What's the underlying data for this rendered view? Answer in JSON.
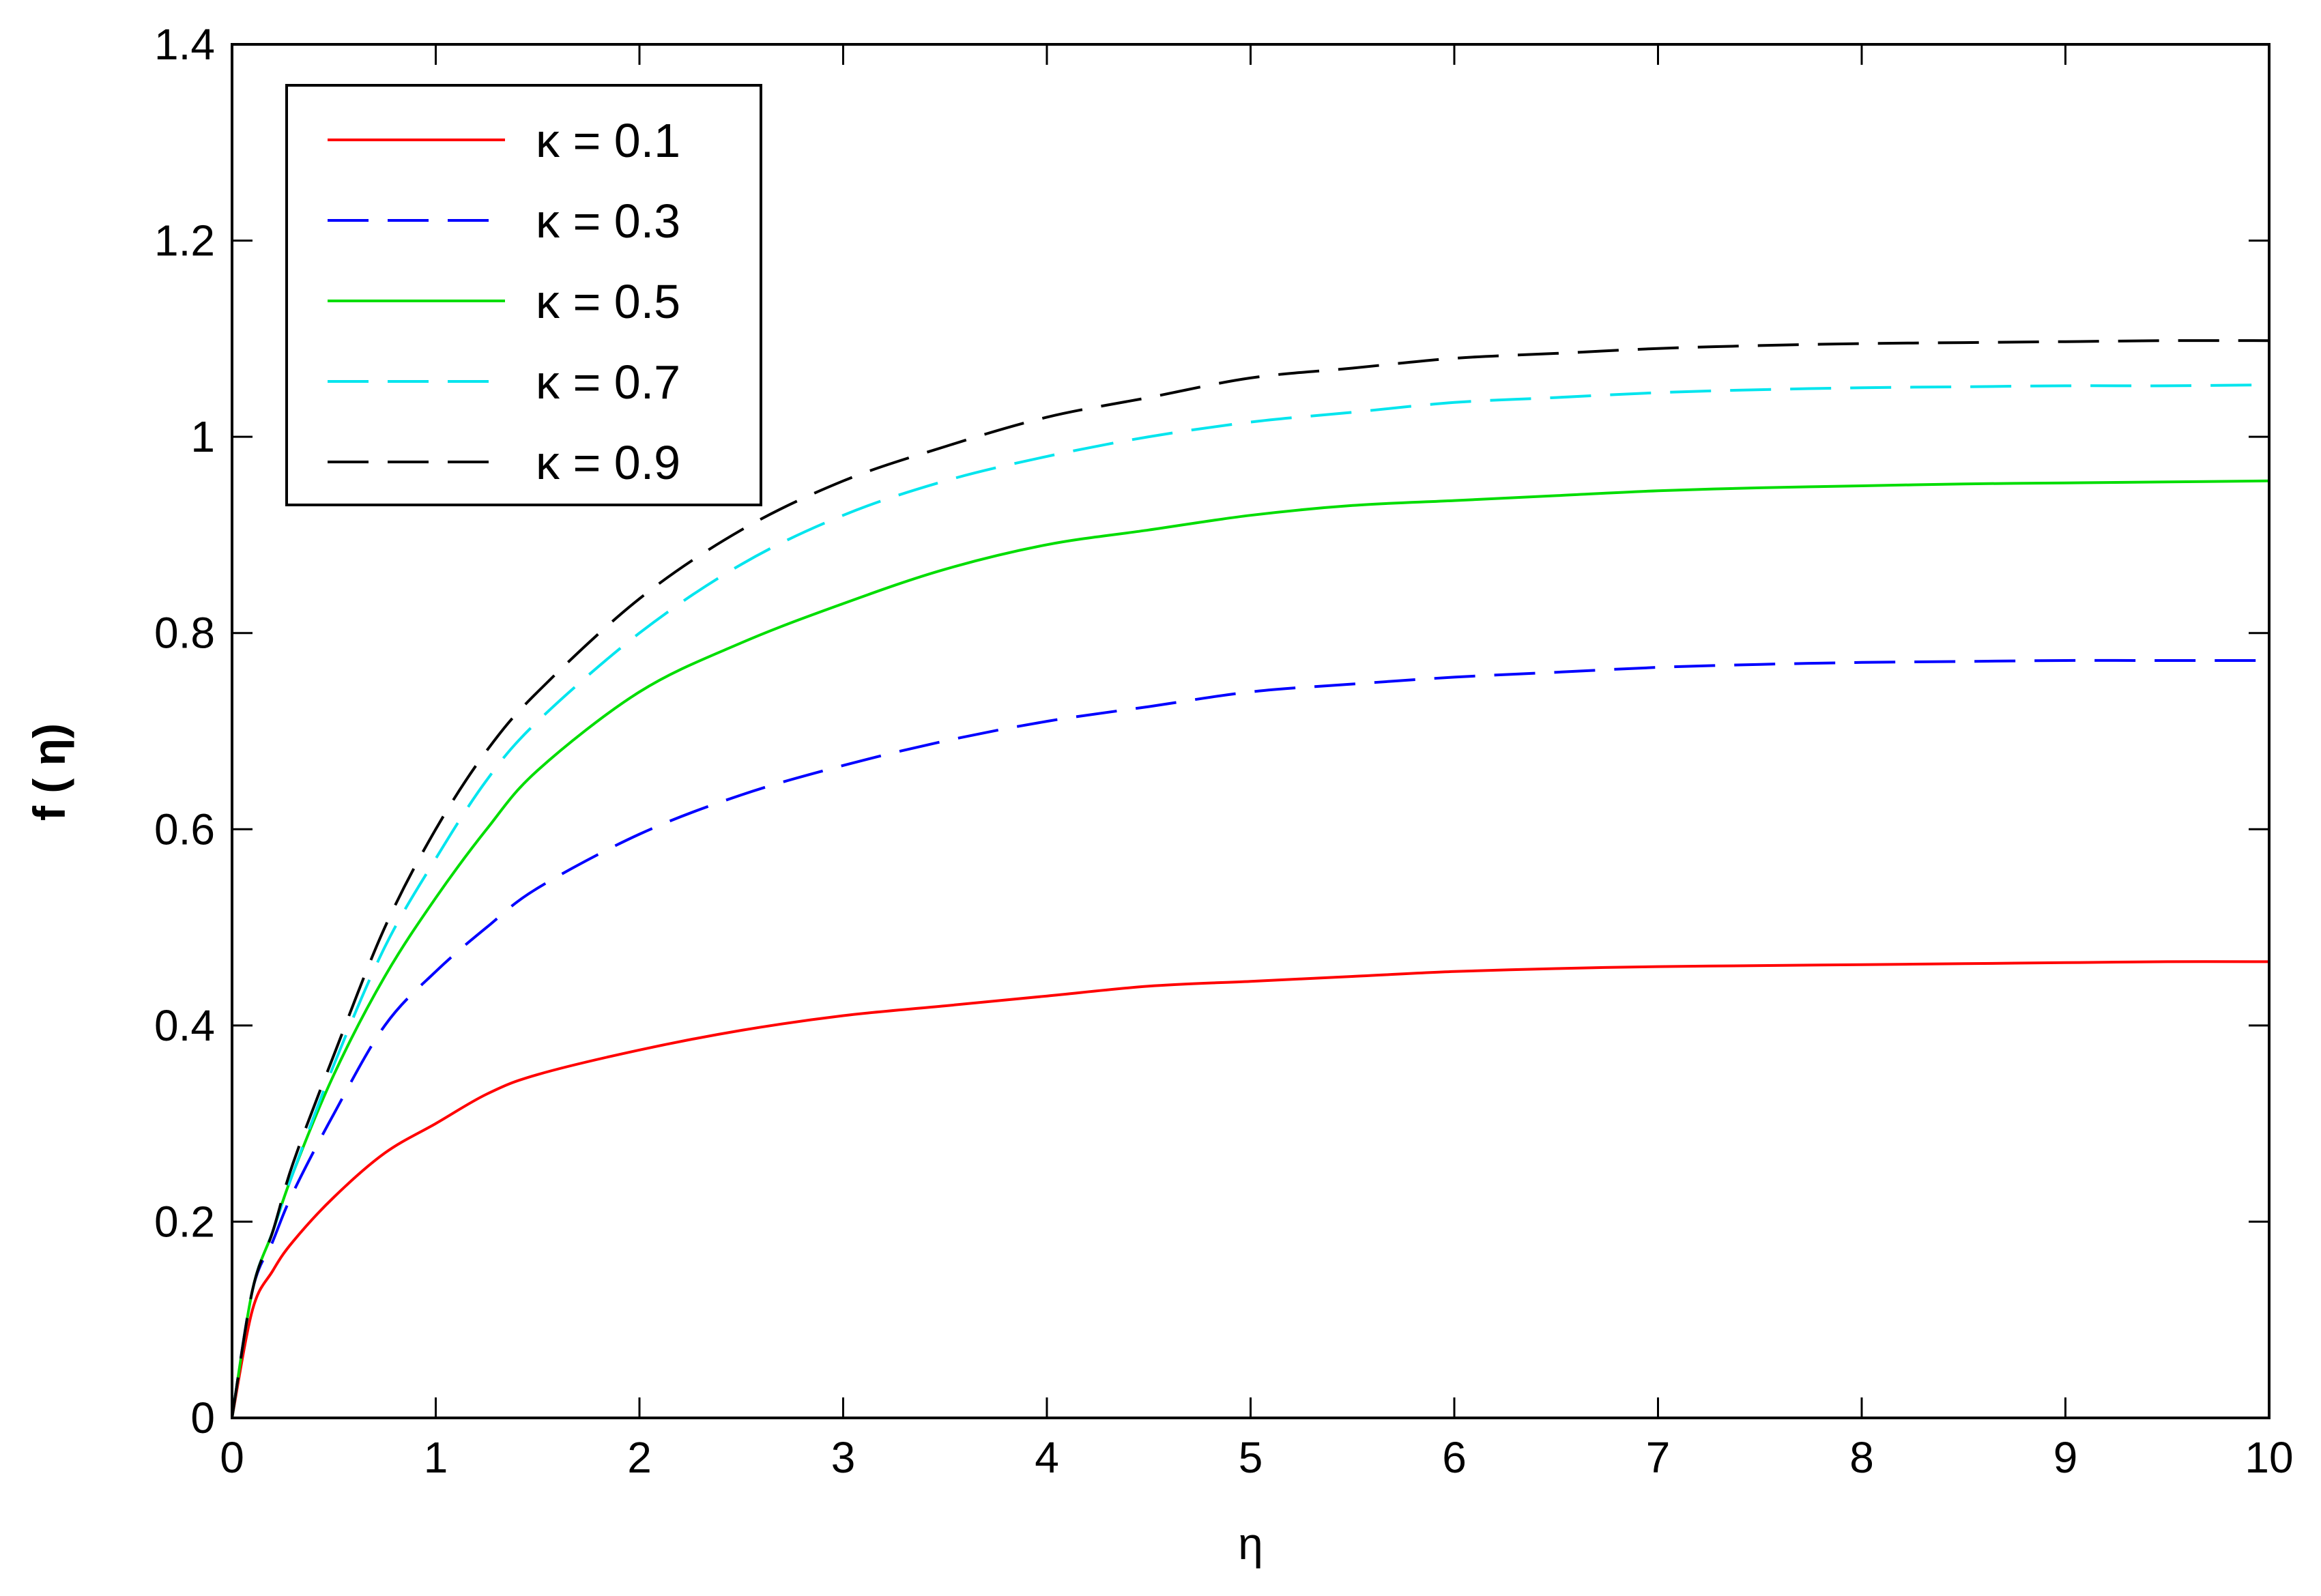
{
  "chart_data": {
    "type": "line",
    "title": "",
    "xlabel": "η",
    "ylabel": "f ( η)",
    "xlim": [
      0,
      10
    ],
    "ylim": [
      0,
      1.4
    ],
    "xticks": [
      0,
      1,
      2,
      3,
      4,
      5,
      6,
      7,
      8,
      9,
      10
    ],
    "xtick_labels": [
      "0",
      "1",
      "2",
      "3",
      "4",
      "5",
      "6",
      "7",
      "8",
      "9",
      "10"
    ],
    "yticks": [
      0,
      0.2,
      0.4,
      0.6,
      0.8,
      1.0,
      1.2,
      1.4
    ],
    "ytick_labels": [
      "0",
      "0.2",
      "0.4",
      "0.6",
      "0.8",
      "1",
      "1.2",
      "1.4"
    ],
    "grid": false,
    "legend_position": "top-left",
    "x": [
      0,
      0.1,
      0.2,
      0.3,
      0.5,
      0.75,
      1,
      1.25,
      1.5,
      2,
      2.5,
      3,
      3.5,
      4,
      4.5,
      5,
      5.5,
      6,
      6.5,
      7,
      7.5,
      8,
      8.5,
      9,
      9.5,
      10
    ],
    "series": [
      {
        "name": "κ = 0.1",
        "color": "#ff0000",
        "dash": "solid",
        "values": [
          0,
          0.11,
          0.15,
          0.18,
          0.225,
          0.27,
          0.3,
          0.33,
          0.35,
          0.375,
          0.395,
          0.41,
          0.42,
          0.43,
          0.44,
          0.445,
          0.45,
          0.455,
          0.458,
          0.46,
          0.461,
          0.462,
          0.463,
          0.464,
          0.465,
          0.465
        ]
      },
      {
        "name": "κ = 0.3",
        "color": "#0000ff",
        "dash": "long-dash",
        "values": [
          0,
          0.13,
          0.18,
          0.23,
          0.31,
          0.4,
          0.455,
          0.5,
          0.54,
          0.595,
          0.635,
          0.665,
          0.69,
          0.71,
          0.725,
          0.74,
          0.748,
          0.755,
          0.76,
          0.765,
          0.768,
          0.77,
          0.771,
          0.772,
          0.772,
          0.772
        ]
      },
      {
        "name": "κ = 0.5",
        "color": "#00dd00",
        "dash": "solid",
        "values": [
          0,
          0.13,
          0.19,
          0.25,
          0.35,
          0.45,
          0.53,
          0.6,
          0.66,
          0.74,
          0.79,
          0.83,
          0.865,
          0.89,
          0.905,
          0.92,
          0.93,
          0.935,
          0.94,
          0.945,
          0.948,
          0.95,
          0.952,
          0.953,
          0.954,
          0.955
        ]
      },
      {
        "name": "κ = 0.7",
        "color": "#00e5ee",
        "dash": "long-dash",
        "values": [
          0,
          0.13,
          0.19,
          0.25,
          0.36,
          0.48,
          0.57,
          0.65,
          0.71,
          0.8,
          0.87,
          0.92,
          0.955,
          0.98,
          1.0,
          1.015,
          1.025,
          1.035,
          1.04,
          1.045,
          1.048,
          1.05,
          1.051,
          1.052,
          1.052,
          1.053
        ]
      },
      {
        "name": "κ = 0.9",
        "color": "#000000",
        "dash": "long-dash",
        "values": [
          0,
          0.13,
          0.19,
          0.26,
          0.37,
          0.5,
          0.6,
          0.68,
          0.74,
          0.835,
          0.905,
          0.955,
          0.99,
          1.02,
          1.04,
          1.06,
          1.07,
          1.08,
          1.085,
          1.09,
          1.093,
          1.095,
          1.096,
          1.097,
          1.098,
          1.098
        ]
      }
    ]
  }
}
